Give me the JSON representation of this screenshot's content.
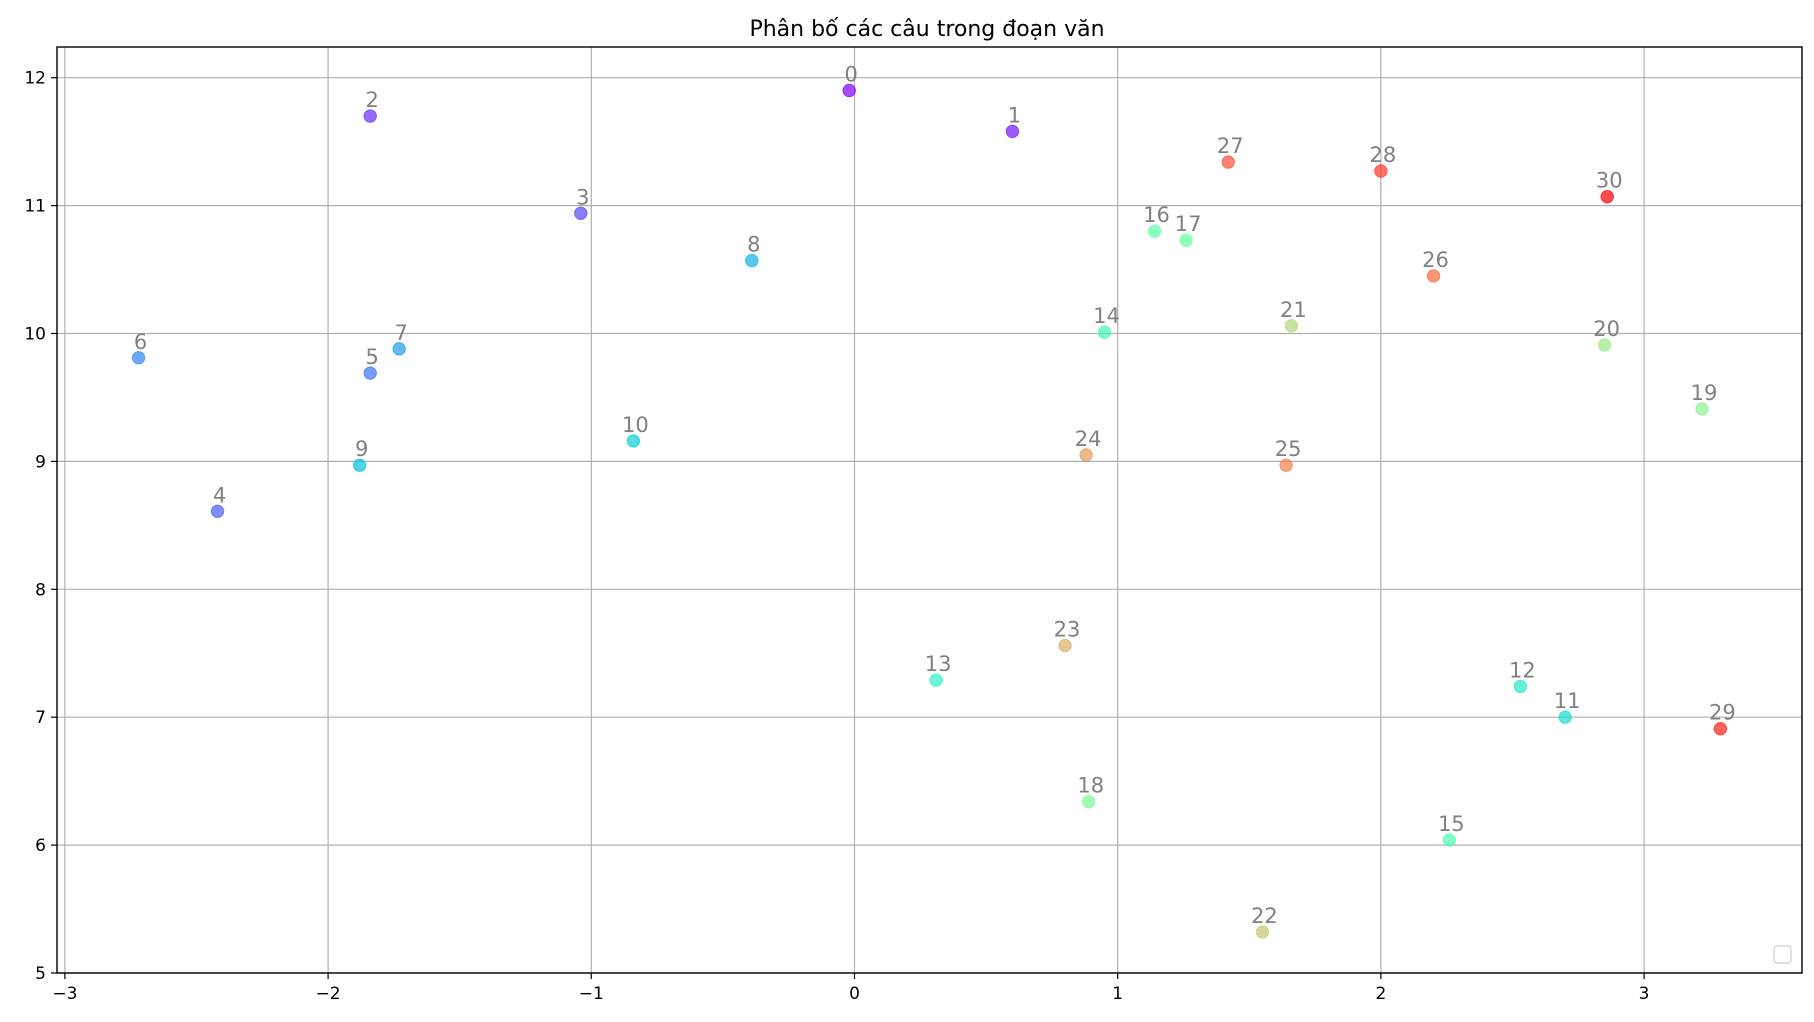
{
  "chart_data": {
    "type": "scatter",
    "title": "Phân bố các câu trong đoạn văn",
    "xlabel": "",
    "ylabel": "",
    "xlim": [
      -3.03,
      3.6
    ],
    "ylim": [
      5.0,
      12.24
    ],
    "xticks": [
      -3,
      -2,
      -1,
      0,
      1,
      2,
      3
    ],
    "yticks": [
      5,
      6,
      7,
      8,
      9,
      10,
      11,
      12
    ],
    "xtick_labels": [
      "−3",
      "−2",
      "−1",
      "0",
      "1",
      "2",
      "3"
    ],
    "ytick_labels": [
      "5",
      "6",
      "7",
      "8",
      "9",
      "10",
      "11",
      "12"
    ],
    "grid": true,
    "legend": "empty box at lower-right",
    "colormap": "rainbow",
    "points": [
      {
        "label": "0",
        "x": -0.02,
        "y": 11.9,
        "color": "#8000ff"
      },
      {
        "label": "1",
        "x": 0.6,
        "y": 11.58,
        "color": "#7216fe"
      },
      {
        "label": "2",
        "x": -1.84,
        "y": 11.7,
        "color": "#662efd"
      },
      {
        "label": "3",
        "x": -1.04,
        "y": 10.94,
        "color": "#5847fa"
      },
      {
        "label": "4",
        "x": -2.42,
        "y": 8.61,
        "color": "#4a5ef7"
      },
      {
        "label": "5",
        "x": -1.84,
        "y": 9.69,
        "color": "#3c74f3"
      },
      {
        "label": "6",
        "x": -2.72,
        "y": 9.81,
        "color": "#2e88ee"
      },
      {
        "label": "7",
        "x": -1.73,
        "y": 9.88,
        "color": "#209ce8"
      },
      {
        "label": "8",
        "x": -0.39,
        "y": 10.57,
        "color": "#12b0e1"
      },
      {
        "label": "9",
        "x": -1.88,
        "y": 8.97,
        "color": "#06c0db"
      },
      {
        "label": "10",
        "x": -0.84,
        "y": 9.16,
        "color": "#08d0d4"
      },
      {
        "label": "11",
        "x": 2.7,
        "y": 7.0,
        "color": "#16dcce"
      },
      {
        "label": "12",
        "x": 2.53,
        "y": 7.24,
        "color": "#24e7c6"
      },
      {
        "label": "13",
        "x": 0.31,
        "y": 7.29,
        "color": "#32f0bf"
      },
      {
        "label": "14",
        "x": 0.95,
        "y": 10.01,
        "color": "#40f6b7"
      },
      {
        "label": "15",
        "x": 2.26,
        "y": 6.04,
        "color": "#4efbaf"
      },
      {
        "label": "16",
        "x": 1.14,
        "y": 10.8,
        "color": "#5afea8"
      },
      {
        "label": "17",
        "x": 1.26,
        "y": 10.73,
        "color": "#68ffa0"
      },
      {
        "label": "18",
        "x": 0.89,
        "y": 6.34,
        "color": "#7afb97"
      },
      {
        "label": "19",
        "x": 3.22,
        "y": 9.41,
        "color": "#8cf38e"
      },
      {
        "label": "20",
        "x": 2.85,
        "y": 9.91,
        "color": "#9ee885"
      },
      {
        "label": "21",
        "x": 1.66,
        "y": 10.06,
        "color": "#b2d87a"
      },
      {
        "label": "22",
        "x": 1.55,
        "y": 5.32,
        "color": "#c4c66f"
      },
      {
        "label": "23",
        "x": 0.8,
        "y": 7.56,
        "color": "#d6b164"
      },
      {
        "label": "24",
        "x": 0.88,
        "y": 9.05,
        "color": "#e69a59"
      },
      {
        "label": "25",
        "x": 1.64,
        "y": 8.97,
        "color": "#f4804c"
      },
      {
        "label": "26",
        "x": 2.2,
        "y": 10.45,
        "color": "#fc6640"
      },
      {
        "label": "27",
        "x": 1.42,
        "y": 11.34,
        "color": "#ff4e33"
      },
      {
        "label": "28",
        "x": 2.0,
        "y": 11.27,
        "color": "#ff3826"
      },
      {
        "label": "29",
        "x": 3.29,
        "y": 6.91,
        "color": "#ff1f16"
      },
      {
        "label": "30",
        "x": 2.86,
        "y": 11.07,
        "color": "#ff0000"
      }
    ]
  },
  "colors": {
    "axis": "#000000",
    "grid": "#b0b0b0",
    "point_label": "#808080"
  }
}
